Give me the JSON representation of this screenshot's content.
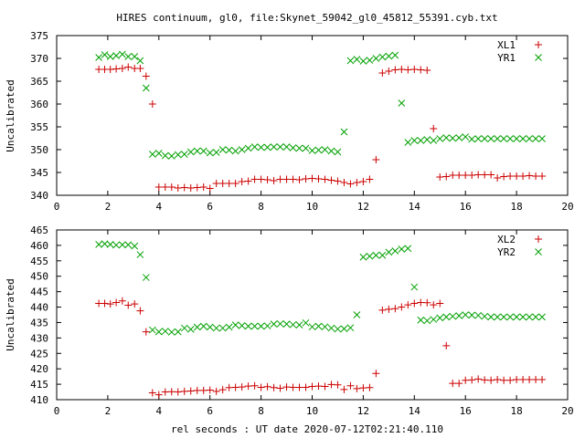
{
  "chart_data": [
    {
      "type": "scatter",
      "title": "HIRES continuum, gl0, file:Skynet_59042_gl0_45812_55391.cyb.txt",
      "xlabel": "",
      "ylabel": "Uncalibrated",
      "xlim": [
        0,
        20
      ],
      "ylim": [
        340,
        375
      ],
      "xticks": [
        0,
        2,
        4,
        6,
        8,
        10,
        12,
        14,
        16,
        18,
        20
      ],
      "yticks": [
        340,
        345,
        350,
        355,
        360,
        365,
        370,
        375
      ],
      "legend": "top-right",
      "series": [
        {
          "name": "XL1",
          "marker": "plus",
          "color": "#cc0000",
          "x": [
            1.65,
            1.88,
            2.1,
            2.33,
            2.57,
            2.8,
            3.05,
            3.27,
            3.5,
            3.75,
            4.0,
            4.25,
            4.5,
            4.75,
            5.0,
            5.25,
            5.5,
            5.75,
            6.0,
            6.25,
            6.5,
            6.75,
            7.0,
            7.25,
            7.5,
            7.75,
            8.0,
            8.25,
            8.5,
            8.75,
            9.0,
            9.25,
            9.5,
            9.75,
            10.0,
            10.25,
            10.5,
            10.75,
            11.0,
            11.25,
            11.5,
            11.75,
            12.0,
            12.25,
            12.5,
            12.75,
            13.0,
            13.25,
            13.5,
            13.75,
            14.0,
            14.25,
            14.5,
            14.75,
            15.0,
            15.25,
            15.5,
            15.75,
            16.0,
            16.25,
            16.5,
            16.75,
            17.0,
            17.25,
            17.5,
            17.75,
            18.0,
            18.25,
            18.5,
            18.75,
            19.0
          ],
          "y": [
            367.6,
            367.6,
            367.6,
            367.7,
            367.8,
            368.1,
            367.8,
            367.8,
            366.1,
            360.0,
            341.8,
            341.8,
            341.8,
            341.6,
            341.7,
            341.6,
            341.7,
            341.8,
            341.5,
            342.6,
            342.6,
            342.6,
            342.6,
            343.0,
            343.1,
            343.5,
            343.5,
            343.4,
            343.2,
            343.5,
            343.5,
            343.5,
            343.4,
            343.6,
            343.7,
            343.6,
            343.5,
            343.3,
            343.1,
            342.8,
            342.5,
            342.8,
            343.0,
            343.5,
            347.8,
            366.8,
            367.2,
            367.5,
            367.6,
            367.5,
            367.6,
            367.5,
            367.4,
            354.6,
            344.0,
            344.1,
            344.4,
            344.4,
            344.4,
            344.4,
            344.5,
            344.5,
            344.5,
            343.8,
            344.1,
            344.2,
            344.2,
            344.2,
            344.3,
            344.2,
            344.2
          ],
          "n_plotted": 63
        },
        {
          "name": "YR1",
          "marker": "cross",
          "color": "#00a000",
          "x": [
            1.65,
            1.88,
            2.1,
            2.33,
            2.57,
            2.8,
            3.05,
            3.27,
            3.5,
            3.75,
            4.0,
            4.25,
            4.5,
            4.75,
            5.0,
            5.25,
            5.5,
            5.75,
            6.0,
            6.25,
            6.5,
            6.75,
            7.0,
            7.25,
            7.5,
            7.75,
            8.0,
            8.25,
            8.5,
            8.75,
            9.0,
            9.25,
            9.5,
            9.75,
            10.0,
            10.25,
            10.5,
            10.75,
            11.0,
            11.25,
            11.5,
            11.75,
            12.0,
            12.25,
            12.5,
            12.75,
            13.0,
            13.25,
            13.5,
            13.75,
            14.0,
            14.25,
            14.5,
            14.75,
            15.0,
            15.25,
            15.5,
            15.75,
            16.0,
            16.25,
            16.5,
            16.75,
            17.0,
            17.25,
            17.5,
            17.75,
            18.0,
            18.25,
            18.5,
            18.75,
            19.0
          ],
          "y": [
            370.2,
            370.8,
            370.4,
            370.6,
            370.9,
            370.4,
            370.4,
            369.5,
            363.5,
            349.0,
            349.2,
            348.7,
            348.6,
            348.9,
            349.0,
            349.5,
            349.7,
            349.7,
            349.3,
            349.4,
            350.0,
            349.9,
            349.7,
            350.0,
            350.3,
            350.6,
            350.5,
            350.5,
            350.6,
            350.6,
            350.6,
            350.4,
            350.3,
            350.3,
            349.8,
            349.9,
            350.0,
            349.7,
            349.5,
            353.9,
            369.5,
            369.8,
            369.4,
            369.6,
            370.0,
            370.3,
            370.5,
            370.7,
            360.2,
            351.6,
            352.0,
            352.0,
            352.2,
            352.0,
            352.4,
            352.6,
            352.5,
            352.6,
            352.8,
            352.3,
            352.4,
            352.4,
            352.4,
            352.4,
            352.4,
            352.4,
            352.4,
            352.4,
            352.4,
            352.4,
            352.4
          ],
          "n_plotted": 63
        }
      ]
    },
    {
      "type": "scatter",
      "title": "",
      "xlabel": "rel seconds : UT date 2020-07-12T02:21:40.110",
      "ylabel": "Uncalibrated",
      "xlim": [
        0,
        20
      ],
      "ylim": [
        410,
        465
      ],
      "xticks": [
        0,
        2,
        4,
        6,
        8,
        10,
        12,
        14,
        16,
        18,
        20
      ],
      "yticks": [
        410,
        415,
        420,
        425,
        430,
        435,
        440,
        445,
        450,
        455,
        460,
        465
      ],
      "legend": "top-right",
      "series": [
        {
          "name": "XL2",
          "marker": "plus",
          "color": "#cc0000",
          "x": [
            1.65,
            1.88,
            2.1,
            2.33,
            2.57,
            2.8,
            3.05,
            3.27,
            3.5,
            3.75,
            4.0,
            4.25,
            4.5,
            4.75,
            5.0,
            5.25,
            5.5,
            5.75,
            6.0,
            6.25,
            6.5,
            6.75,
            7.0,
            7.25,
            7.5,
            7.75,
            8.0,
            8.25,
            8.5,
            8.75,
            9.0,
            9.25,
            9.5,
            9.75,
            10.0,
            10.25,
            10.5,
            10.75,
            11.0,
            11.25,
            11.5,
            11.75,
            12.0,
            12.25,
            12.5,
            12.75,
            13.0,
            13.25,
            13.5,
            13.75,
            14.0,
            14.25,
            14.5,
            14.75,
            15.0,
            15.25,
            15.5,
            15.75,
            16.0,
            16.25,
            16.5,
            16.75,
            17.0,
            17.25,
            17.5,
            17.75,
            18.0,
            18.25,
            18.5,
            18.75,
            19.0
          ],
          "y": [
            441.2,
            441.2,
            441.0,
            441.5,
            442.0,
            440.6,
            441.0,
            438.8,
            432.0,
            412.2,
            411.6,
            412.5,
            412.6,
            412.5,
            412.7,
            412.8,
            413.0,
            413.0,
            413.1,
            412.7,
            413.2,
            413.9,
            414.0,
            414.1,
            414.4,
            414.5,
            414.0,
            414.2,
            413.9,
            413.7,
            414.1,
            414.0,
            414.0,
            414.0,
            414.3,
            414.4,
            414.3,
            414.9,
            414.8,
            413.3,
            414.5,
            413.6,
            413.8,
            413.9,
            418.5,
            439.0,
            439.3,
            439.5,
            440.0,
            440.7,
            441.2,
            441.5,
            441.4,
            440.7,
            441.2,
            427.5,
            415.3,
            415.3,
            416.3,
            416.4,
            416.7,
            416.4,
            416.3,
            416.5,
            416.3,
            416.3,
            416.5,
            416.5,
            416.5,
            416.5,
            416.5
          ],
          "n_plotted": 63
        },
        {
          "name": "YR2",
          "marker": "cross",
          "color": "#00a000",
          "x": [
            1.65,
            1.88,
            2.1,
            2.33,
            2.57,
            2.8,
            3.05,
            3.27,
            3.5,
            3.75,
            4.0,
            4.25,
            4.5,
            4.75,
            5.0,
            5.25,
            5.5,
            5.75,
            6.0,
            6.25,
            6.5,
            6.75,
            7.0,
            7.25,
            7.5,
            7.75,
            8.0,
            8.25,
            8.5,
            8.75,
            9.0,
            9.25,
            9.5,
            9.75,
            10.0,
            10.25,
            10.5,
            10.75,
            11.0,
            11.25,
            11.5,
            11.75,
            12.0,
            12.25,
            12.5,
            12.75,
            13.0,
            13.25,
            13.5,
            13.75,
            14.0,
            14.25,
            14.5,
            14.75,
            15.0,
            15.25,
            15.5,
            15.75,
            16.0,
            16.25,
            16.5,
            16.75,
            17.0,
            17.25,
            17.5,
            17.75,
            18.0,
            18.25,
            18.5,
            18.75,
            19.0
          ],
          "y": [
            460.3,
            460.5,
            460.3,
            460.1,
            460.2,
            460.2,
            459.8,
            457.0,
            449.6,
            432.6,
            432.0,
            432.2,
            431.9,
            432.0,
            433.2,
            432.8,
            433.5,
            433.8,
            433.5,
            433.2,
            433.2,
            433.5,
            434.2,
            434.0,
            433.8,
            433.8,
            433.8,
            433.9,
            434.5,
            434.6,
            434.5,
            434.3,
            434.2,
            434.9,
            433.6,
            433.8,
            433.6,
            433.2,
            432.9,
            433.0,
            433.3,
            437.5,
            456.2,
            456.5,
            456.8,
            456.8,
            457.8,
            458.2,
            458.8,
            459.0,
            446.5,
            435.8,
            435.6,
            436.0,
            436.5,
            436.8,
            437.0,
            437.2,
            437.5,
            437.4,
            437.3,
            437.0,
            436.8,
            436.8,
            436.8,
            436.8,
            436.8,
            436.8,
            436.8,
            436.8,
            436.8
          ],
          "n_plotted": 63
        }
      ]
    }
  ]
}
